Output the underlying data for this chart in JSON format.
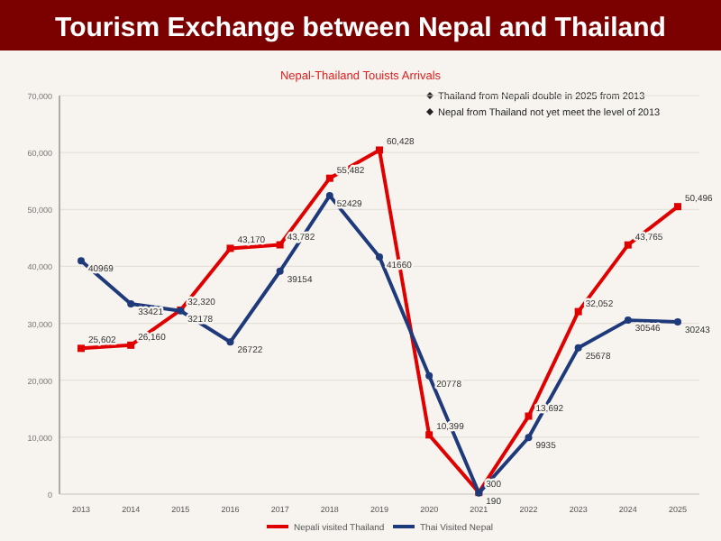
{
  "chart_data": {
    "type": "line",
    "title": "Tourism Exchange between Nepal and Thailand",
    "subtitle": "Nepal-Thailand Touists Arrivals",
    "annotations": [
      "Thailand from Nepali double in 2025 from 2013",
      "Nepal from Thailand not yet meet the level of 2013"
    ],
    "categories": [
      "2013",
      "2014",
      "2015",
      "2016",
      "2017",
      "2018",
      "2019",
      "2020",
      "2021",
      "2022",
      "2023",
      "2024",
      "2025"
    ],
    "series": [
      {
        "name": "Nepali visited Thailand",
        "color": "#e00000",
        "marker": "square",
        "values": [
          25602,
          26160,
          32320,
          43170,
          43782,
          55482,
          60428,
          10399,
          300,
          13692,
          32052,
          43765,
          50496
        ],
        "value_labels": [
          "25,602",
          "26,160",
          "32,320",
          "43,170",
          "43,782",
          "55,482",
          "60,428",
          "10,399",
          "300",
          "13,692",
          "32,052",
          "43,765",
          "50,496"
        ]
      },
      {
        "name": "Thai Visited Nepal",
        "color": "#1f3a7a",
        "marker": "circle",
        "values": [
          40969,
          33421,
          32178,
          26722,
          39154,
          52429,
          41660,
          20778,
          190,
          9935,
          25678,
          30546,
          30243
        ],
        "value_labels": [
          "40969",
          "33421",
          "32178",
          "26722",
          "39154",
          "52429",
          "41660",
          "20778",
          "190",
          "9935",
          "25678",
          "30546",
          "30243"
        ]
      }
    ],
    "ylim": [
      0,
      70000
    ],
    "yticks": [
      0,
      {
        "value": 10000,
        "label": "10,000"
      },
      {
        "value": 20000,
        "label": "20,000"
      },
      {
        "value": 30000,
        "label": "30,000"
      },
      {
        "value": 40000,
        "label": "40,000"
      },
      {
        "value": 50000,
        "label": "50,000"
      },
      {
        "value": 60000,
        "label": "60,000"
      },
      {
        "value": 70000,
        "label": "70,000"
      }
    ],
    "grid": "y",
    "legend": "bottom"
  }
}
